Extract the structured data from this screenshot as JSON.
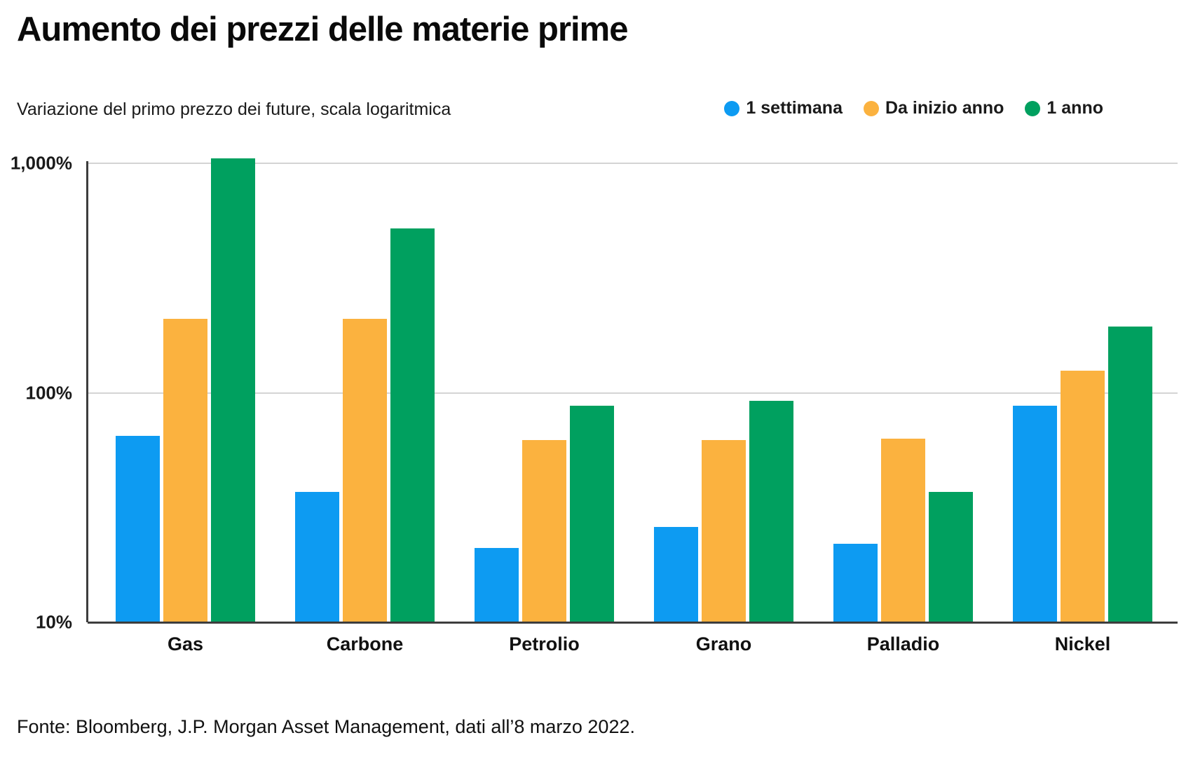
{
  "title": "Aumento dei prezzi delle materie prime",
  "subtitle": "Variazione del primo prezzo dei future, scala logaritmica",
  "footer": "Fonte: Bloomberg, J.P. Morgan Asset Management, dati all’8 marzo 2022.",
  "colors": {
    "blue": "#0D9BF2",
    "orange": "#FBB23F",
    "green": "#00A05F",
    "grid": "#D4D4D4",
    "axis": "#3D3D3D",
    "text": "#111111"
  },
  "chart_data": {
    "type": "bar",
    "scale": "log",
    "title": "Aumento dei prezzi delle materie prime",
    "subtitle": "Variazione del primo prezzo dei future, scala logaritmica",
    "categories": [
      "Gas",
      "Carbone",
      "Petrolio",
      "Grano",
      "Palladio",
      "Nickel"
    ],
    "series": [
      {
        "name": "1 settimana",
        "color_key": "blue",
        "values": [
          65,
          37,
          21,
          26,
          22,
          88
        ]
      },
      {
        "name": "Da inizio anno",
        "color_key": "orange",
        "values": [
          210,
          210,
          62,
          62,
          63,
          125
        ]
      },
      {
        "name": "1 anno",
        "color_key": "green",
        "values": [
          1050,
          520,
          88,
          92,
          37,
          195
        ]
      }
    ],
    "unit": "%",
    "yticks": [
      {
        "value": 10,
        "label": "10%"
      },
      {
        "value": 100,
        "label": "100%"
      },
      {
        "value": 1000,
        "label": "1,000%"
      }
    ],
    "ylim": [
      10,
      1100
    ],
    "grid": true,
    "legend_position": "top-right"
  }
}
